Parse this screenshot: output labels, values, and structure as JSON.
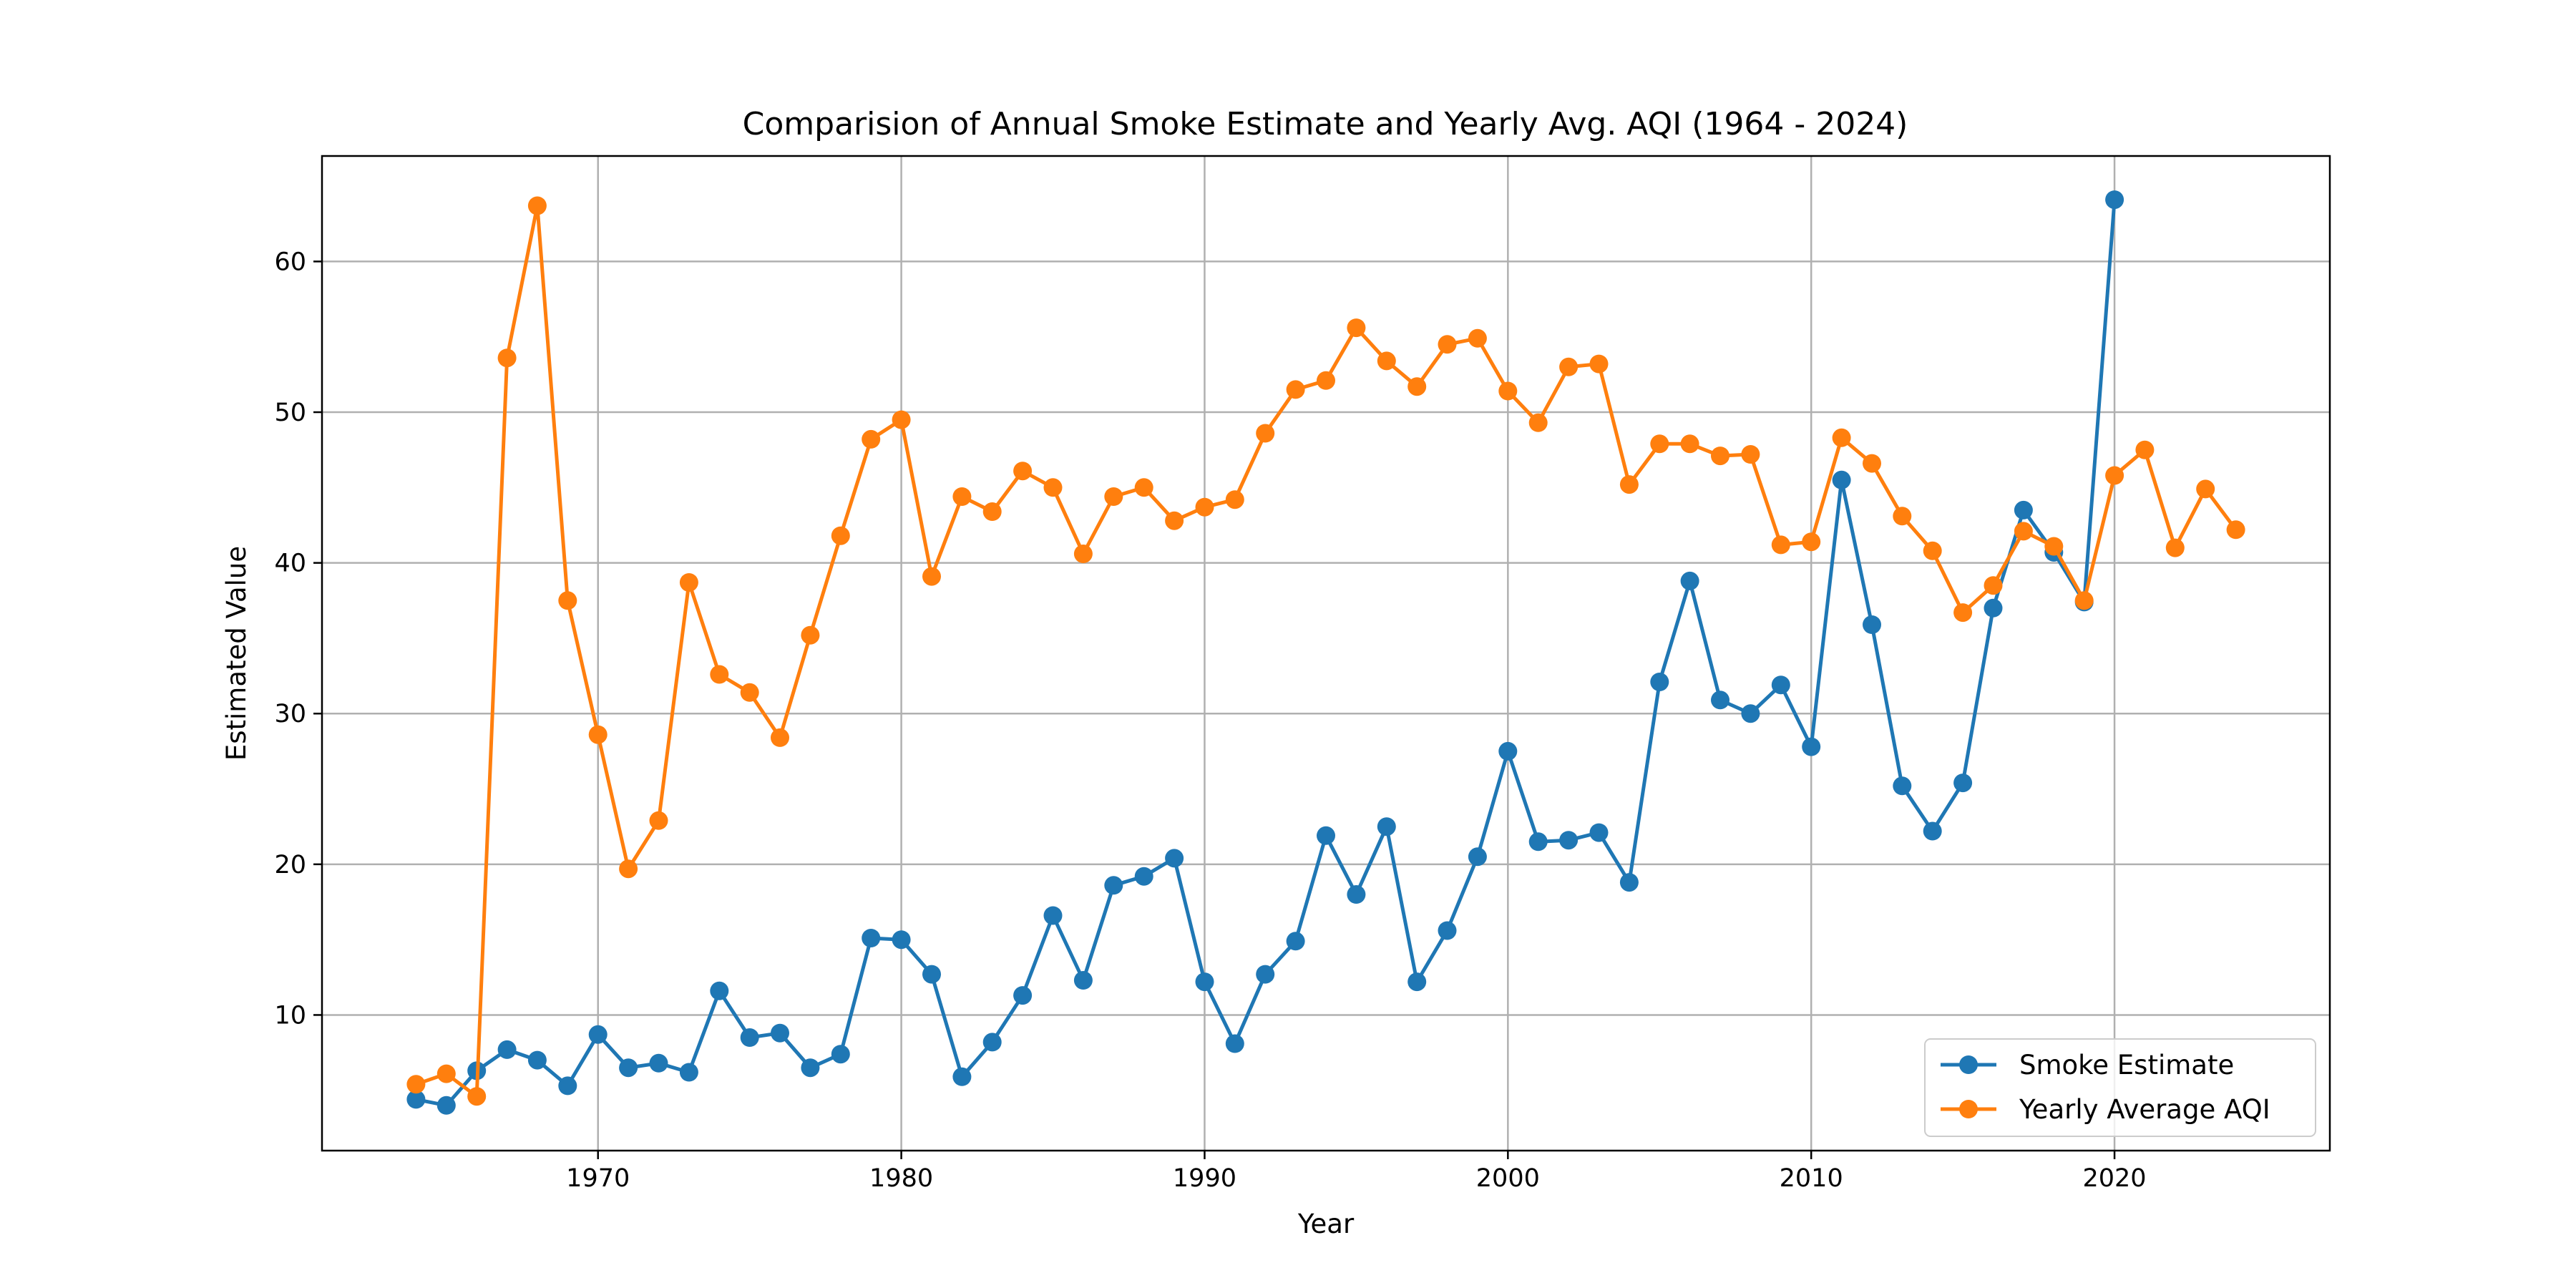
{
  "chart_data": {
    "type": "line",
    "title": "Comparision of Annual Smoke Estimate and Yearly Avg. AQI (1964 - 2024)",
    "xlabel": "Year",
    "ylabel": "Estimated Value",
    "xlim": [
      1960.9,
      2027.1
    ],
    "ylim": [
      1.0,
      67.0
    ],
    "xticks": [
      1970,
      1980,
      1990,
      2000,
      2010,
      2020
    ],
    "yticks": [
      10,
      20,
      30,
      40,
      50,
      60
    ],
    "grid": true,
    "legend_position": "lower-right",
    "series": [
      {
        "name": "Smoke Estimate",
        "color": "#1f77b4",
        "x": [
          1964,
          1965,
          1966,
          1967,
          1968,
          1969,
          1970,
          1971,
          1972,
          1973,
          1974,
          1975,
          1976,
          1977,
          1978,
          1979,
          1980,
          1981,
          1982,
          1983,
          1984,
          1985,
          1986,
          1987,
          1988,
          1989,
          1990,
          1991,
          1992,
          1993,
          1994,
          1995,
          1996,
          1997,
          1998,
          1999,
          2000,
          2001,
          2002,
          2003,
          2004,
          2005,
          2006,
          2007,
          2008,
          2009,
          2010,
          2011,
          2012,
          2013,
          2014,
          2015,
          2016,
          2017,
          2018,
          2019,
          2020
        ],
        "values": [
          4.4,
          4.0,
          6.3,
          7.7,
          7.0,
          5.3,
          8.7,
          6.5,
          6.8,
          6.2,
          11.6,
          8.5,
          8.8,
          6.5,
          7.4,
          15.1,
          15.0,
          12.7,
          5.9,
          8.2,
          11.3,
          16.6,
          12.3,
          18.6,
          19.2,
          20.4,
          12.2,
          8.1,
          12.7,
          14.9,
          21.9,
          18.0,
          22.5,
          12.2,
          15.6,
          20.5,
          27.5,
          21.5,
          21.6,
          22.1,
          18.8,
          32.1,
          38.8,
          30.9,
          30.0,
          31.9,
          27.8,
          45.5,
          35.9,
          25.2,
          22.2,
          25.4,
          37.0,
          43.5,
          40.7,
          37.4,
          64.1
        ]
      },
      {
        "name": "Yearly Average AQI",
        "color": "#ff7f0e",
        "x": [
          1964,
          1965,
          1966,
          1967,
          1968,
          1969,
          1970,
          1971,
          1972,
          1973,
          1974,
          1975,
          1976,
          1977,
          1978,
          1979,
          1980,
          1981,
          1982,
          1983,
          1984,
          1985,
          1986,
          1987,
          1988,
          1989,
          1990,
          1991,
          1992,
          1993,
          1994,
          1995,
          1996,
          1997,
          1998,
          1999,
          2000,
          2001,
          2002,
          2003,
          2004,
          2005,
          2006,
          2007,
          2008,
          2009,
          2010,
          2011,
          2012,
          2013,
          2014,
          2015,
          2016,
          2017,
          2018,
          2019,
          2020,
          2021,
          2022,
          2023,
          2024
        ],
        "values": [
          5.4,
          6.1,
          4.6,
          53.6,
          63.7,
          37.5,
          28.6,
          19.7,
          22.9,
          38.7,
          32.6,
          31.4,
          28.4,
          35.2,
          41.8,
          48.2,
          49.5,
          39.1,
          44.4,
          43.4,
          46.1,
          45.0,
          40.6,
          44.4,
          45.0,
          42.8,
          43.7,
          44.2,
          48.6,
          51.5,
          52.1,
          55.6,
          53.4,
          51.7,
          54.5,
          54.9,
          51.4,
          49.3,
          53.0,
          53.2,
          45.2,
          47.9,
          47.9,
          47.1,
          47.2,
          41.2,
          41.4,
          48.3,
          46.6,
          43.1,
          40.8,
          36.7,
          38.5,
          42.1,
          41.1,
          37.5,
          45.8,
          47.5,
          41.0,
          44.9,
          42.2
        ]
      }
    ]
  }
}
